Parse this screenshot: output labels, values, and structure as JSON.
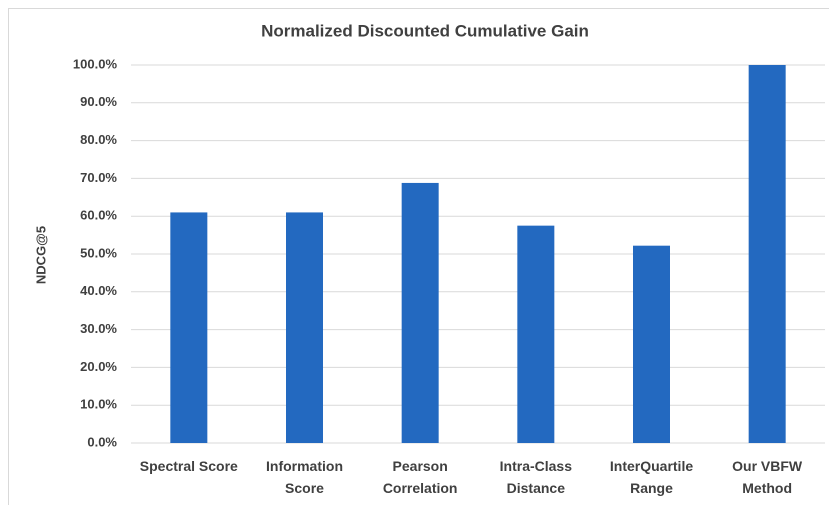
{
  "chart_data": {
    "type": "bar",
    "title": "Normalized Discounted Cumulative Gain",
    "y_label": "NDCG@5",
    "categories": [
      "Spectral Score",
      "Information Score",
      "Pearson Correlation",
      "Intra-Class Distance",
      "InterQuartile Range",
      "Our VBFW Method"
    ],
    "values": [
      61.0,
      61.0,
      68.8,
      57.5,
      52.2,
      100.0
    ],
    "color": "#2369c0",
    "ylim": [
      0,
      100
    ],
    "yticks": [
      {
        "value": 0,
        "label": "0.0%"
      },
      {
        "value": 10,
        "label": "10.0%"
      },
      {
        "value": 20,
        "label": "20.0%"
      },
      {
        "value": 30,
        "label": "30.0%"
      },
      {
        "value": 40,
        "label": "40.0%"
      },
      {
        "value": 50,
        "label": "50.0%"
      },
      {
        "value": 60,
        "label": "60.0%"
      },
      {
        "value": 70,
        "label": "70.0%"
      },
      {
        "value": 80,
        "label": "80.0%"
      },
      {
        "value": 90,
        "label": "90.0%"
      },
      {
        "value": 100,
        "label": "100.0%"
      }
    ],
    "grid": true
  }
}
